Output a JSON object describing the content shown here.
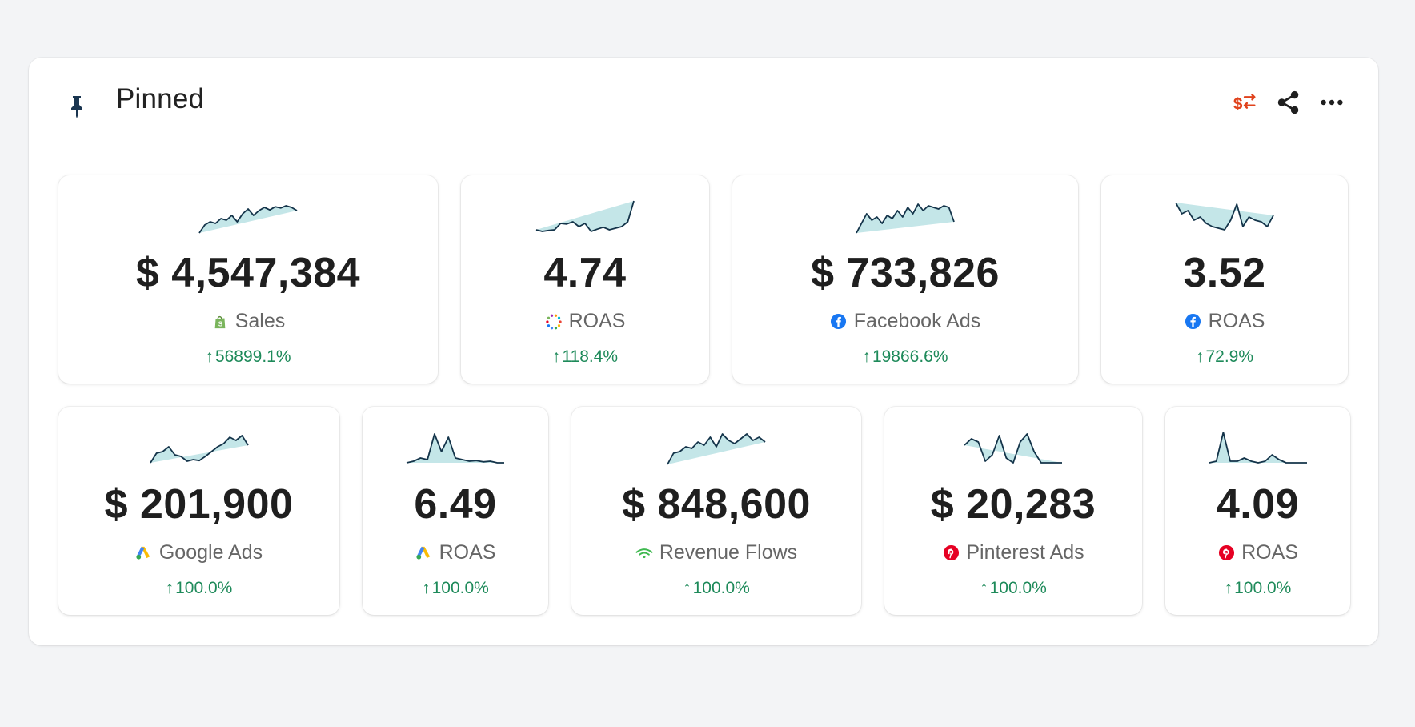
{
  "panel": {
    "title": "Pinned",
    "icons": {
      "pin": "pin-icon",
      "currency": "currency-swap-icon",
      "share": "share-icon",
      "more": "more-icon"
    },
    "accent_currency_color": "#e0421c"
  },
  "cards": [
    {
      "value": "$ 4,547,384",
      "label": "Sales",
      "icon": "shopify-icon",
      "change": "56899.1%",
      "direction": "up",
      "spark": [
        0.0,
        0.25,
        0.35,
        0.3,
        0.45,
        0.4,
        0.55,
        0.35,
        0.6,
        0.75,
        0.55,
        0.7,
        0.8,
        0.72,
        0.82,
        0.78,
        0.85,
        0.8,
        0.7
      ]
    },
    {
      "value": "4.74",
      "label": "ROAS",
      "icon": "blended-icon",
      "change": "118.4%",
      "direction": "up",
      "spark": [
        0.1,
        0.05,
        0.08,
        0.1,
        0.3,
        0.28,
        0.35,
        0.2,
        0.3,
        0.05,
        0.12,
        0.18,
        0.1,
        0.15,
        0.2,
        0.35,
        1.0
      ]
    },
    {
      "value": "$ 733,826",
      "label": "Facebook Ads",
      "icon": "facebook-icon",
      "change": "19866.6%",
      "direction": "up",
      "spark": [
        0.0,
        0.3,
        0.6,
        0.4,
        0.5,
        0.3,
        0.55,
        0.45,
        0.7,
        0.5,
        0.8,
        0.6,
        0.9,
        0.7,
        0.85,
        0.8,
        0.75,
        0.85,
        0.8,
        0.35
      ]
    },
    {
      "value": "3.52",
      "label": "ROAS",
      "icon": "facebook-icon",
      "change": "72.9%",
      "direction": "up",
      "spark": [
        0.95,
        0.6,
        0.7,
        0.4,
        0.5,
        0.3,
        0.2,
        0.15,
        0.1,
        0.4,
        0.9,
        0.2,
        0.5,
        0.4,
        0.35,
        0.2,
        0.55
      ]
    },
    {
      "value": "$ 201,900",
      "label": "Google Ads",
      "icon": "google-ads-icon",
      "change": "100.0%",
      "direction": "up",
      "spark": [
        0.05,
        0.35,
        0.4,
        0.55,
        0.3,
        0.25,
        0.1,
        0.15,
        0.12,
        0.25,
        0.4,
        0.55,
        0.65,
        0.85,
        0.75,
        0.9,
        0.6
      ]
    },
    {
      "value": "6.49",
      "label": "ROAS",
      "icon": "google-ads-icon",
      "change": "100.0%",
      "direction": "up",
      "spark": [
        0.05,
        0.1,
        0.2,
        0.15,
        0.95,
        0.4,
        0.85,
        0.2,
        0.15,
        0.1,
        0.12,
        0.08,
        0.1,
        0.05,
        0.05
      ]
    },
    {
      "value": "$ 848,600",
      "label": "Revenue Flows",
      "icon": "revenue-flows-icon",
      "change": "100.0%",
      "direction": "up",
      "spark": [
        0.0,
        0.35,
        0.4,
        0.55,
        0.5,
        0.7,
        0.6,
        0.85,
        0.55,
        0.95,
        0.75,
        0.65,
        0.8,
        0.95,
        0.75,
        0.85,
        0.7
      ]
    },
    {
      "value": "$ 20,283",
      "label": "Pinterest Ads",
      "icon": "pinterest-icon",
      "change": "100.0%",
      "direction": "up",
      "spark": [
        0.6,
        0.8,
        0.7,
        0.1,
        0.3,
        0.9,
        0.2,
        0.05,
        0.7,
        0.95,
        0.4,
        0.05,
        0.05,
        0.05,
        0.05
      ]
    },
    {
      "value": "4.09",
      "label": "ROAS",
      "icon": "pinterest-icon",
      "change": "100.0%",
      "direction": "up",
      "spark": [
        0.05,
        0.1,
        1.0,
        0.1,
        0.1,
        0.2,
        0.1,
        0.05,
        0.1,
        0.3,
        0.15,
        0.05,
        0.05,
        0.05,
        0.05
      ]
    }
  ],
  "colors": {
    "positive": "#1e8a5a",
    "spark_line": "#14344a",
    "spark_fill": "#c4e6e8"
  }
}
